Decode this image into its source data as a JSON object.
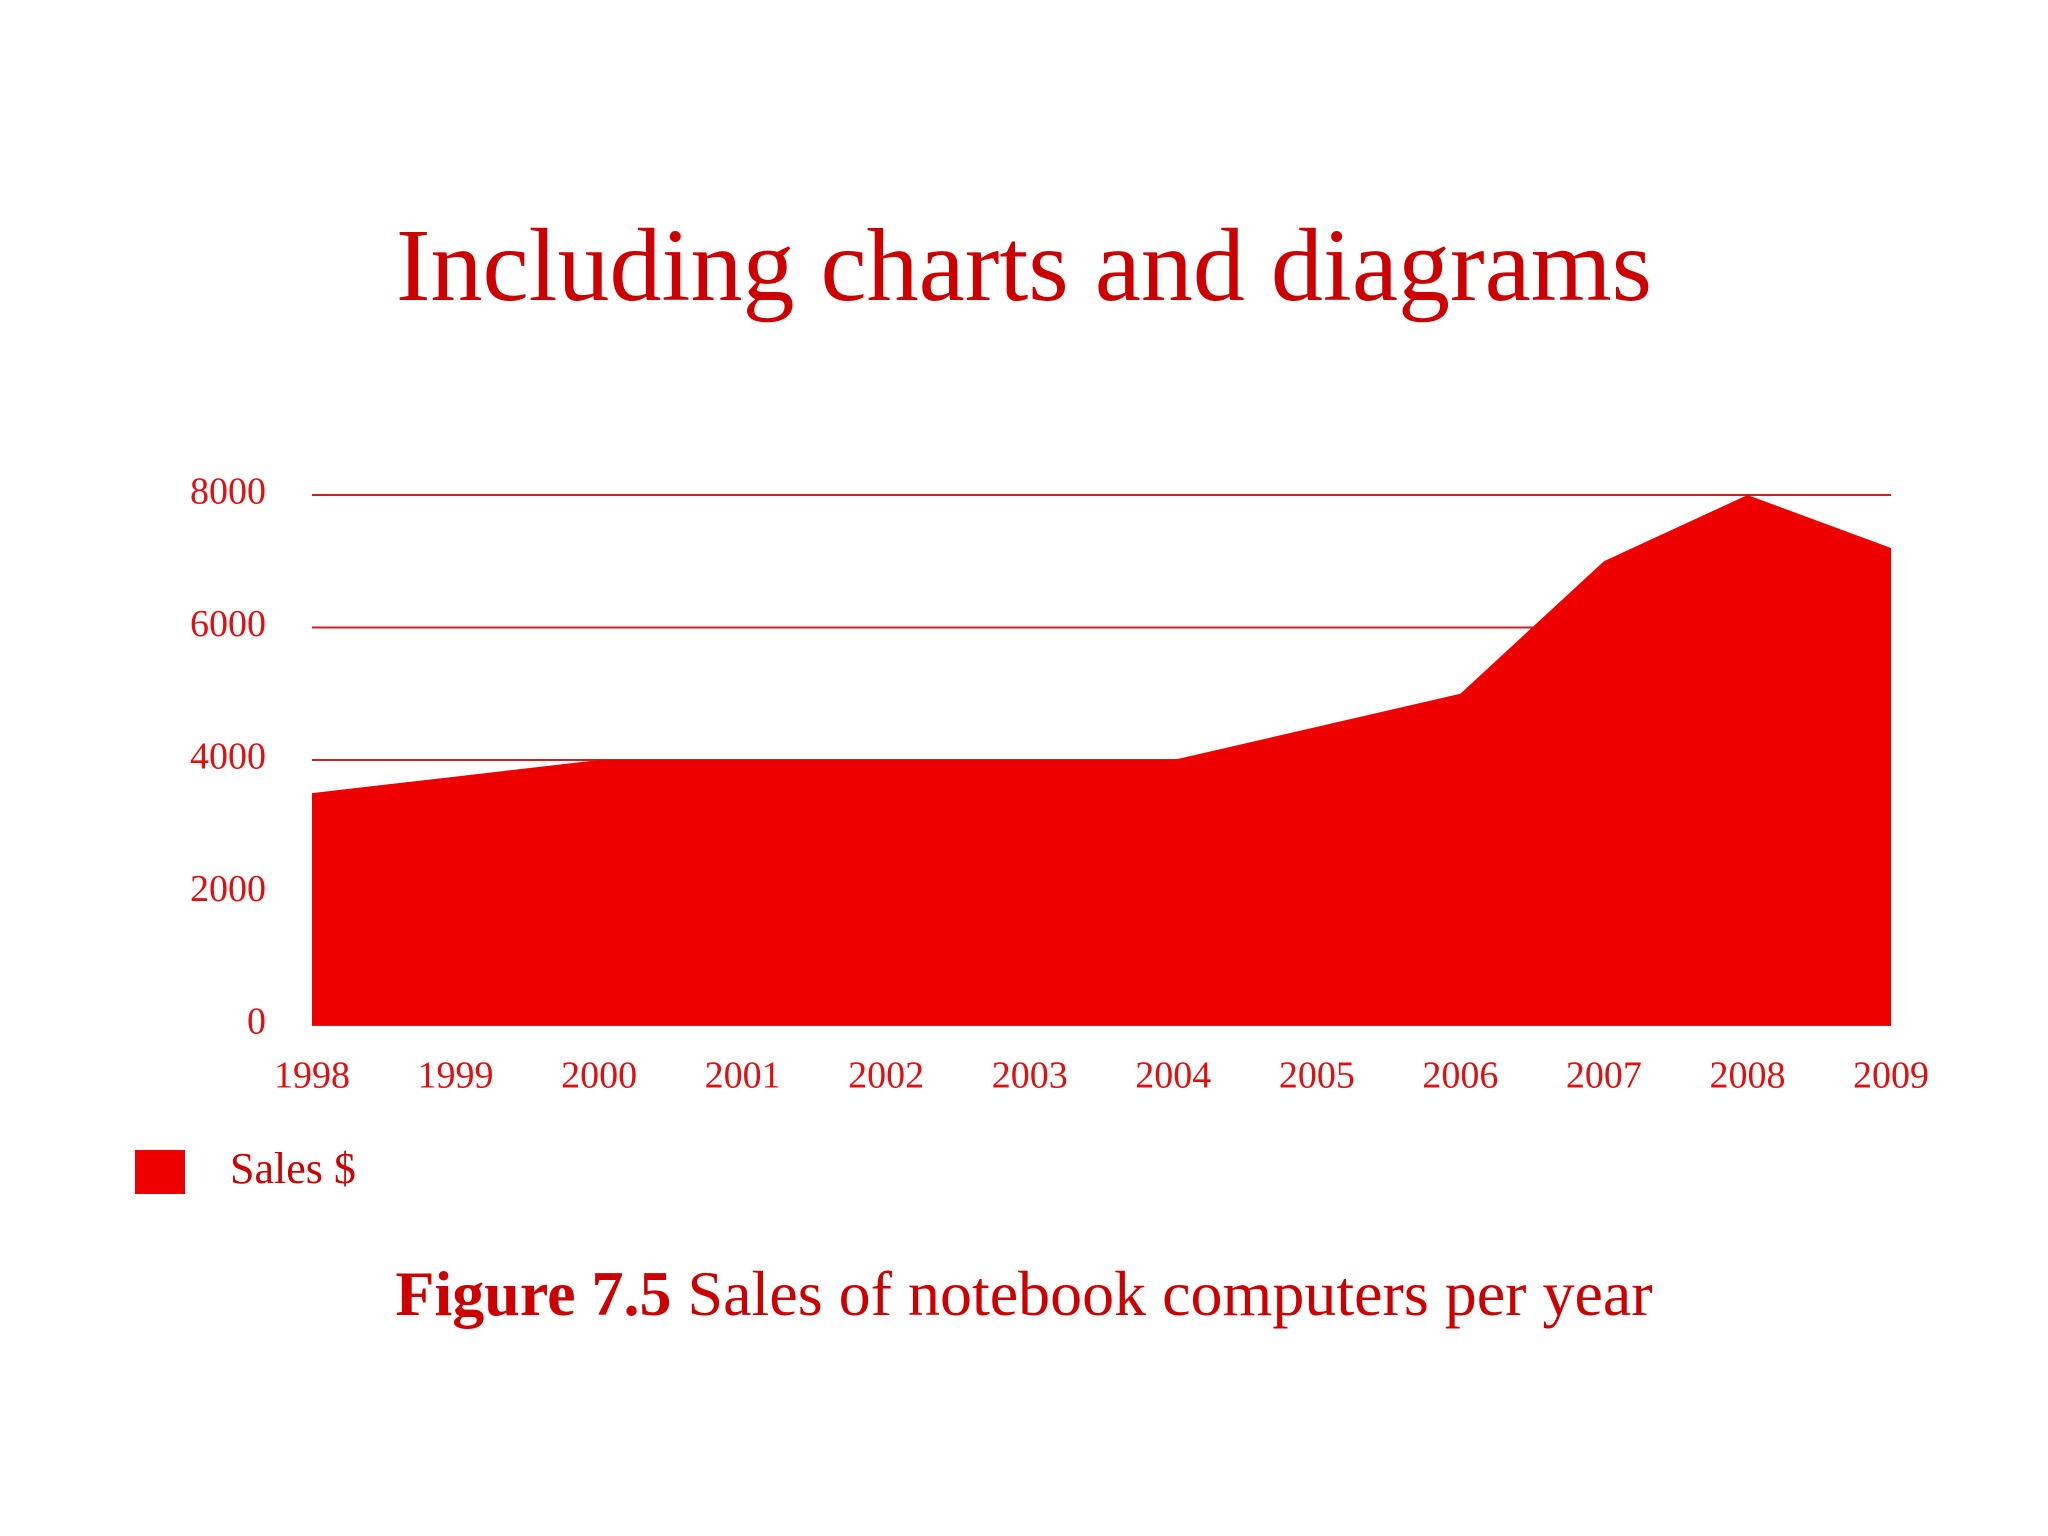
{
  "chart_data": {
    "type": "area",
    "title": "Including charts and diagrams",
    "categories": [
      "1998",
      "1999",
      "2000",
      "2001",
      "2002",
      "2003",
      "2004",
      "2005",
      "2006",
      "2007",
      "2008",
      "2009"
    ],
    "series": [
      {
        "name": "Sales $",
        "color": "#ee0000",
        "values": [
          3500,
          3750,
          4000,
          4000,
          4000,
          4000,
          4000,
          4500,
          5000,
          7000,
          8000,
          7200
        ]
      }
    ],
    "ylim": [
      0,
      8000
    ],
    "yticks": [
      0,
      2000,
      4000,
      6000,
      8000
    ],
    "grid": true,
    "caption": {
      "label": "Figure 7.5",
      "text": "Sales of notebook computers per year"
    }
  }
}
